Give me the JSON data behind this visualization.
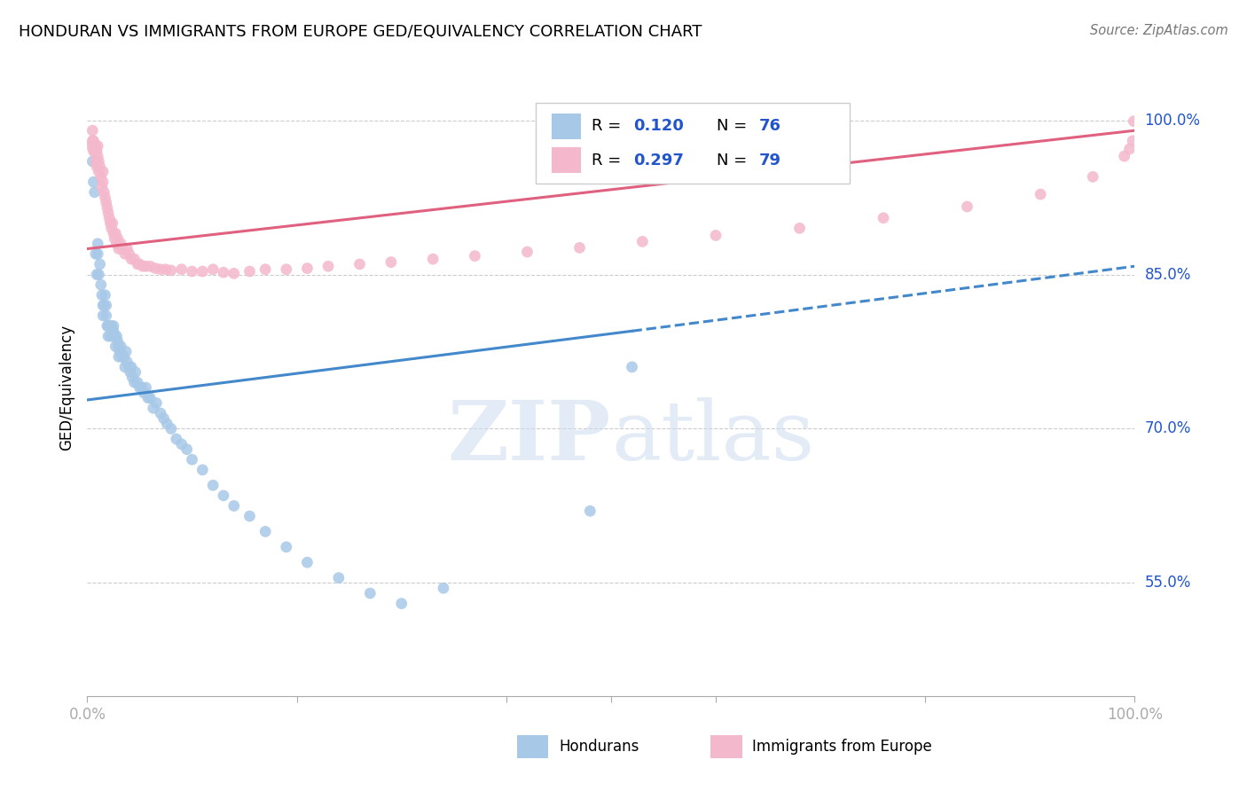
{
  "title": "HONDURAN VS IMMIGRANTS FROM EUROPE GED/EQUIVALENCY CORRELATION CHART",
  "source": "Source: ZipAtlas.com",
  "ylabel": "GED/Equivalency",
  "legend_R1": "0.120",
  "legend_N1": "76",
  "legend_R2": "0.297",
  "legend_N2": "79",
  "blue_scatter_color": "#a8c8e8",
  "pink_scatter_color": "#f4b8cc",
  "blue_line_color": "#4488cc",
  "pink_line_color": "#e06080",
  "legend_label1": "Hondurans",
  "legend_label2": "Immigrants from Europe",
  "xlim": [
    0.0,
    1.0
  ],
  "ylim": [
    0.44,
    1.04
  ],
  "ytick_vals": [
    0.55,
    0.7,
    0.85,
    1.0
  ],
  "ytick_labels": [
    "55.0%",
    "70.0%",
    "85.0%",
    "100.0%"
  ],
  "blue_line_x0": 0.0,
  "blue_line_y0": 0.728,
  "blue_line_x_solid_end": 0.52,
  "blue_line_y_solid_end": 0.795,
  "blue_line_x1": 1.0,
  "blue_line_y1": 0.858,
  "pink_line_x0": 0.0,
  "pink_line_y0": 0.875,
  "pink_line_x1": 1.0,
  "pink_line_y1": 0.99,
  "honduran_x": [
    0.005,
    0.006,
    0.007,
    0.008,
    0.009,
    0.01,
    0.01,
    0.011,
    0.012,
    0.013,
    0.014,
    0.015,
    0.015,
    0.016,
    0.017,
    0.018,
    0.018,
    0.019,
    0.02,
    0.02,
    0.021,
    0.022,
    0.023,
    0.024,
    0.025,
    0.025,
    0.026,
    0.027,
    0.028,
    0.029,
    0.03,
    0.03,
    0.031,
    0.032,
    0.033,
    0.035,
    0.036,
    0.037,
    0.038,
    0.04,
    0.041,
    0.042,
    0.043,
    0.045,
    0.046,
    0.048,
    0.05,
    0.052,
    0.054,
    0.056,
    0.058,
    0.06,
    0.063,
    0.066,
    0.07,
    0.073,
    0.076,
    0.08,
    0.085,
    0.09,
    0.095,
    0.1,
    0.11,
    0.12,
    0.13,
    0.14,
    0.155,
    0.17,
    0.19,
    0.21,
    0.24,
    0.27,
    0.3,
    0.34,
    0.48,
    0.52
  ],
  "honduran_y": [
    0.96,
    0.94,
    0.93,
    0.87,
    0.85,
    0.87,
    0.88,
    0.85,
    0.86,
    0.84,
    0.83,
    0.82,
    0.81,
    0.82,
    0.83,
    0.81,
    0.82,
    0.8,
    0.8,
    0.79,
    0.8,
    0.79,
    0.8,
    0.795,
    0.795,
    0.8,
    0.79,
    0.78,
    0.79,
    0.785,
    0.78,
    0.77,
    0.775,
    0.78,
    0.77,
    0.77,
    0.76,
    0.775,
    0.765,
    0.76,
    0.755,
    0.76,
    0.75,
    0.745,
    0.755,
    0.745,
    0.74,
    0.74,
    0.735,
    0.74,
    0.73,
    0.73,
    0.72,
    0.725,
    0.715,
    0.71,
    0.705,
    0.7,
    0.69,
    0.685,
    0.68,
    0.67,
    0.66,
    0.645,
    0.635,
    0.625,
    0.615,
    0.6,
    0.585,
    0.57,
    0.555,
    0.54,
    0.53,
    0.545,
    0.62,
    0.76
  ],
  "europe_x": [
    0.004,
    0.005,
    0.005,
    0.006,
    0.006,
    0.007,
    0.007,
    0.008,
    0.008,
    0.009,
    0.009,
    0.01,
    0.01,
    0.011,
    0.011,
    0.012,
    0.013,
    0.014,
    0.015,
    0.015,
    0.016,
    0.017,
    0.018,
    0.019,
    0.02,
    0.021,
    0.022,
    0.023,
    0.024,
    0.025,
    0.026,
    0.027,
    0.028,
    0.029,
    0.03,
    0.032,
    0.034,
    0.036,
    0.038,
    0.04,
    0.042,
    0.045,
    0.048,
    0.05,
    0.053,
    0.056,
    0.06,
    0.065,
    0.07,
    0.075,
    0.08,
    0.09,
    0.1,
    0.11,
    0.12,
    0.13,
    0.14,
    0.155,
    0.17,
    0.19,
    0.21,
    0.23,
    0.26,
    0.29,
    0.33,
    0.37,
    0.42,
    0.47,
    0.53,
    0.6,
    0.68,
    0.76,
    0.84,
    0.91,
    0.96,
    0.99,
    0.995,
    0.998,
    0.999
  ],
  "europe_y": [
    0.975,
    0.98,
    0.99,
    0.97,
    0.98,
    0.975,
    0.97,
    0.975,
    0.96,
    0.97,
    0.955,
    0.965,
    0.975,
    0.95,
    0.96,
    0.955,
    0.945,
    0.935,
    0.95,
    0.94,
    0.93,
    0.925,
    0.92,
    0.915,
    0.91,
    0.905,
    0.9,
    0.895,
    0.9,
    0.89,
    0.885,
    0.89,
    0.88,
    0.885,
    0.875,
    0.88,
    0.875,
    0.87,
    0.875,
    0.87,
    0.865,
    0.865,
    0.86,
    0.86,
    0.858,
    0.858,
    0.858,
    0.856,
    0.855,
    0.855,
    0.854,
    0.855,
    0.853,
    0.853,
    0.855,
    0.852,
    0.851,
    0.853,
    0.855,
    0.855,
    0.856,
    0.858,
    0.86,
    0.862,
    0.865,
    0.868,
    0.872,
    0.876,
    0.882,
    0.888,
    0.895,
    0.905,
    0.916,
    0.928,
    0.945,
    0.965,
    0.972,
    0.98,
    0.999
  ]
}
